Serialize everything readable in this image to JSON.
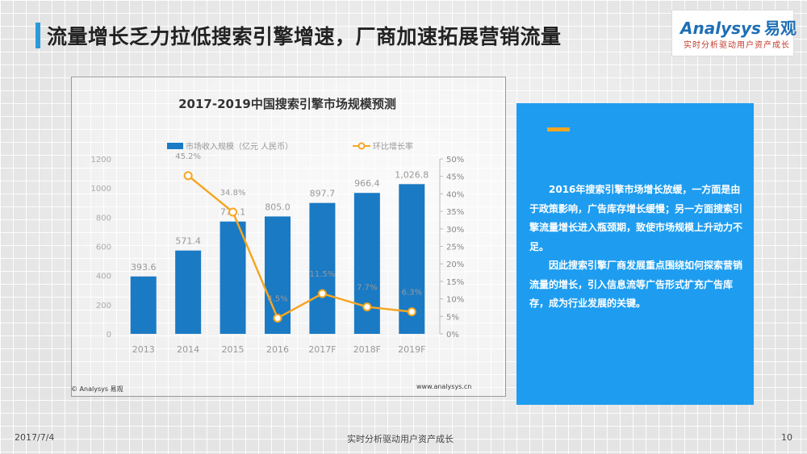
{
  "header": {
    "title": "流量增长乏力拉低搜索引擎增速，厂商加速拓展营销流量"
  },
  "logo": {
    "brand": "nalysys",
    "brand_initial": "A",
    "brand_cn": "易观",
    "tagline": "实时分析驱动用户资产成长"
  },
  "chart_data": {
    "type": "bar",
    "title": "2017-2019中国搜索引擎市场规模预测",
    "categories": [
      "2013",
      "2014",
      "2015",
      "2016",
      "2017F",
      "2018F",
      "2019F"
    ],
    "series": [
      {
        "name": "市场收入规模（亿元 人民币）",
        "type": "bar",
        "axis": "left",
        "values": [
          393.6,
          571.4,
          770.1,
          805.0,
          897.7,
          966.4,
          1026.8
        ],
        "labels": [
          "393.6",
          "571.4",
          "770.1",
          "805.0",
          "897.7",
          "966.4",
          "1,026.8"
        ],
        "color": "#1a7ac4"
      },
      {
        "name": "环比增长率",
        "type": "line",
        "axis": "right",
        "values": [
          null,
          45.2,
          34.8,
          4.5,
          11.5,
          7.7,
          6.3
        ],
        "labels": [
          "",
          "45.2%",
          "34.8%",
          "4.5%",
          "11.5%",
          "7.7%",
          "6.3%"
        ],
        "color": "#f5a623"
      }
    ],
    "y_left": {
      "ylim": [
        0,
        1200
      ],
      "ticks": [
        "0",
        "200",
        "400",
        "600",
        "800",
        "1000",
        "1200"
      ]
    },
    "y_right": {
      "ylim": [
        0,
        50
      ],
      "ticks": [
        "0%",
        "5%",
        "10%",
        "15%",
        "20%",
        "25%",
        "30%",
        "35%",
        "40%",
        "45%",
        "50%"
      ]
    },
    "legend_position": "top",
    "grid": false
  },
  "chart_footer": {
    "copyright": "© Analysys 易观",
    "website": "www.analysys.cn"
  },
  "info_panel": {
    "paragraph1": "2016年搜索引擎市场增长放缓，一方面是由于政策影响，广告库存增长缓慢；另一方面搜索引擎流量增长进入瓶颈期，致使市场规模上升动力不足。",
    "paragraph2": "因此搜索引擎厂商发展重点围绕如何探索营销流量的增长，引入信息流等广告形式扩充广告库存，成为行业发展的关键。"
  },
  "footer": {
    "date": "2017/7/4",
    "slogan": "实时分析驱动用户资产成长",
    "page_number": "10"
  }
}
